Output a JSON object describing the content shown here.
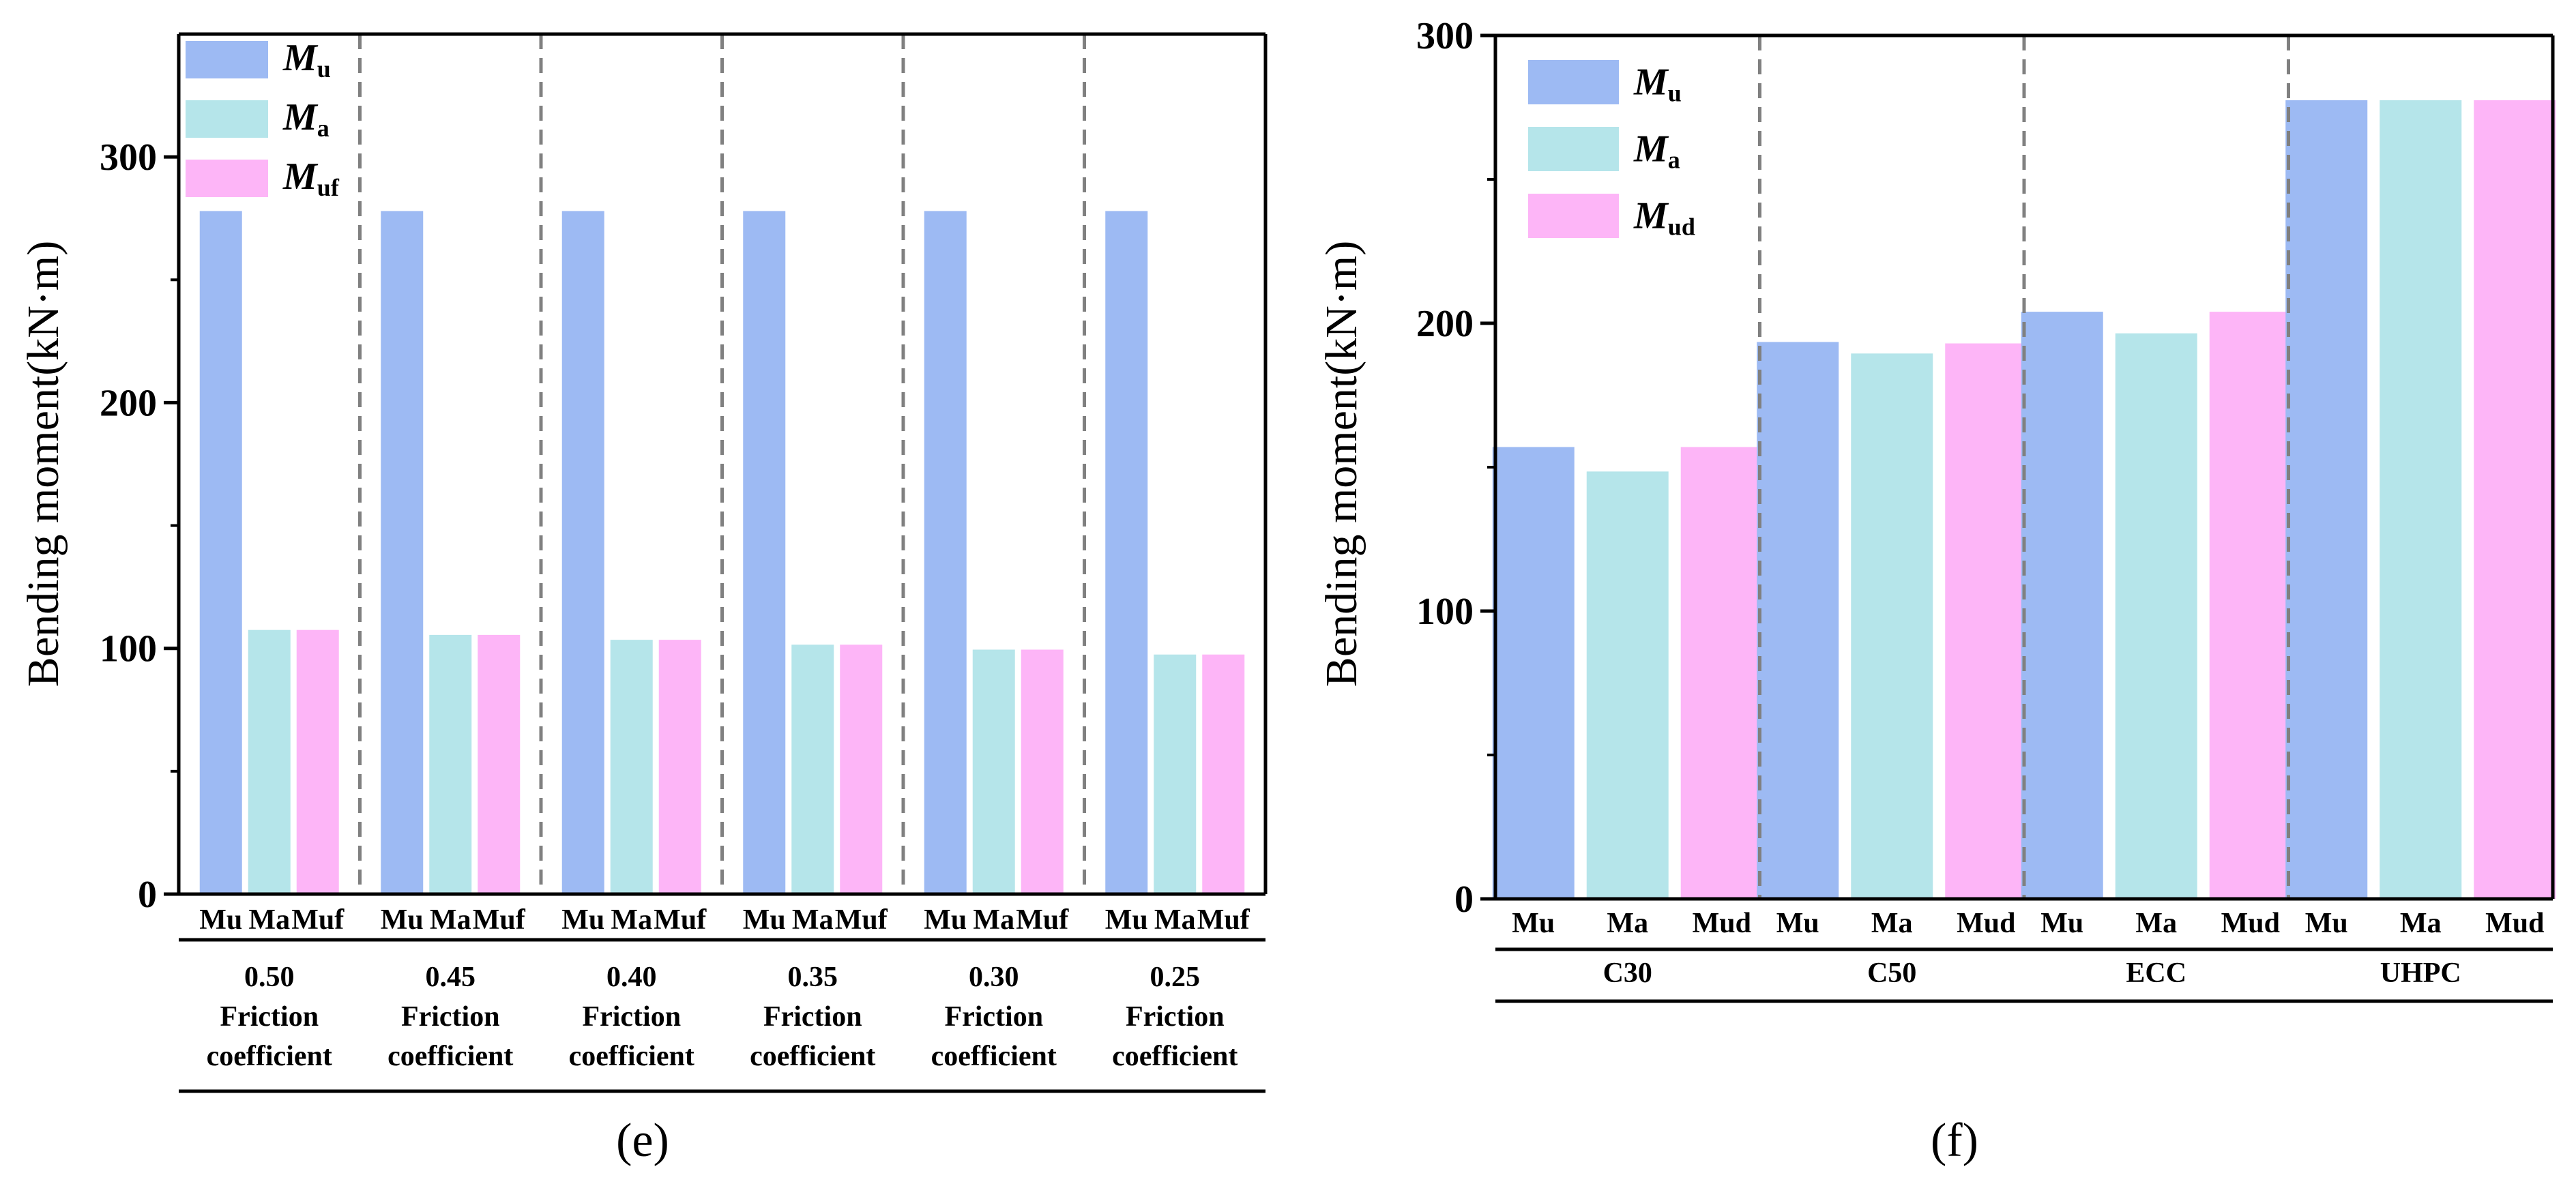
{
  "chart_data": [
    {
      "type": "bar",
      "panel_label": "(e)",
      "ylabel": "Bending moment(kN·m)",
      "ylim": [
        0,
        350
      ],
      "yticks": [
        0,
        100,
        200,
        300
      ],
      "legend": [
        {
          "main": "M",
          "sub": "u",
          "color": "#9dbaf3"
        },
        {
          "main": "M",
          "sub": "a",
          "color": "#b5e5ea"
        },
        {
          "main": "M",
          "sub": "uf",
          "color": "#fdb5f7"
        }
      ],
      "bar_labels": [
        "Mu",
        "Ma",
        "Muf"
      ],
      "groups": [
        {
          "value": "0.50",
          "label1": "Friction",
          "label2": "coefficient"
        },
        {
          "value": "0.45",
          "label1": "Friction",
          "label2": "coefficient"
        },
        {
          "value": "0.40",
          "label1": "Friction",
          "label2": "coefficient"
        },
        {
          "value": "0.35",
          "label1": "Friction",
          "label2": "coefficient"
        },
        {
          "value": "0.30",
          "label1": "Friction",
          "label2": "coefficient"
        },
        {
          "value": "0.25",
          "label1": "Friction",
          "label2": "coefficient"
        }
      ],
      "series": [
        {
          "name": "Mu",
          "values": [
            278,
            278,
            278,
            278,
            278,
            278
          ]
        },
        {
          "name": "Ma",
          "values": [
            107.5,
            105.5,
            103.5,
            101.5,
            99.5,
            97.5
          ]
        },
        {
          "name": "Muf",
          "values": [
            107.5,
            105.5,
            103.5,
            101.5,
            99.5,
            97.5
          ]
        }
      ]
    },
    {
      "type": "bar",
      "panel_label": "(f)",
      "ylabel": "Bending moment(kN·m)",
      "ylim": [
        0,
        300
      ],
      "yticks": [
        0,
        100,
        200,
        300
      ],
      "legend": [
        {
          "main": "M",
          "sub": "u",
          "color": "#9dbaf3"
        },
        {
          "main": "M",
          "sub": "a",
          "color": "#b5e5ea"
        },
        {
          "main": "M",
          "sub": "ud",
          "color": "#fdb5f7"
        }
      ],
      "bar_labels": [
        "Mu",
        "Ma",
        "Mud"
      ],
      "groups": [
        {
          "value": "C30"
        },
        {
          "value": "C50"
        },
        {
          "value": "ECC"
        },
        {
          "value": "UHPC"
        }
      ],
      "series": [
        {
          "name": "Mu",
          "values": [
            157,
            193.5,
            204,
            277.5
          ]
        },
        {
          "name": "Ma",
          "values": [
            148.5,
            189.5,
            196.5,
            277.5
          ]
        },
        {
          "name": "Mud",
          "values": [
            157,
            193,
            204,
            277.5
          ]
        }
      ]
    }
  ]
}
